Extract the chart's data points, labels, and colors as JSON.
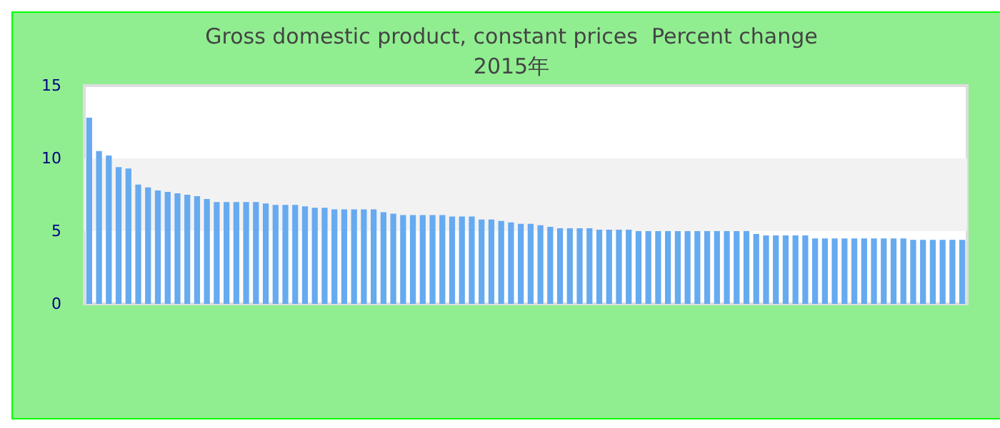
{
  "chart_data": {
    "type": "bar",
    "title": "Gross domestic product, constant prices  Percent change",
    "subtitle": "2015年",
    "categories": [
      null,
      null,
      null,
      null,
      null,
      null,
      null,
      null,
      null,
      null,
      null,
      null,
      null,
      null,
      null,
      null,
      null,
      null,
      null,
      null,
      null,
      null,
      null,
      null,
      null,
      null,
      null,
      null,
      null,
      null,
      null,
      null,
      null,
      null,
      null,
      null,
      null,
      null,
      null,
      null,
      null,
      null,
      null,
      null,
      null,
      null,
      null,
      null,
      null,
      null,
      null,
      null,
      null,
      null,
      null,
      null,
      null,
      null,
      null,
      null,
      null,
      null,
      null,
      null,
      null,
      null,
      null,
      null,
      null,
      null,
      null,
      null,
      null,
      null,
      null,
      null,
      null,
      null,
      null,
      null,
      null,
      null,
      null,
      null,
      null,
      null,
      null,
      null,
      null,
      null
    ],
    "values": [
      12.8,
      10.5,
      10.2,
      9.4,
      9.3,
      8.2,
      8.0,
      7.8,
      7.7,
      7.6,
      7.5,
      7.4,
      7.2,
      7.0,
      7.0,
      7.0,
      7.0,
      7.0,
      6.9,
      6.8,
      6.8,
      6.8,
      6.7,
      6.6,
      6.6,
      6.5,
      6.5,
      6.5,
      6.5,
      6.5,
      6.3,
      6.2,
      6.1,
      6.1,
      6.1,
      6.1,
      6.1,
      6.0,
      6.0,
      6.0,
      5.8,
      5.8,
      5.7,
      5.6,
      5.5,
      5.5,
      5.4,
      5.3,
      5.2,
      5.2,
      5.2,
      5.2,
      5.1,
      5.1,
      5.1,
      5.1,
      5.0,
      5.0,
      5.0,
      5.0,
      5.0,
      5.0,
      5.0,
      5.0,
      5.0,
      5.0,
      5.0,
      5.0,
      4.8,
      4.7,
      4.7,
      4.7,
      4.7,
      4.7,
      4.5,
      4.5,
      4.5,
      4.5,
      4.5,
      4.5,
      4.5,
      4.5,
      4.5,
      4.5,
      4.4,
      4.4,
      4.4,
      4.4,
      4.4,
      4.4
    ],
    "color": "#66aaf0",
    "ylim": [
      0,
      15
    ],
    "yticks": [
      0,
      5,
      10,
      15
    ],
    "grid": false,
    "bands": [
      {
        "axis": "y",
        "from": 5,
        "to": 10,
        "color": "#f2f2f2"
      }
    ]
  }
}
